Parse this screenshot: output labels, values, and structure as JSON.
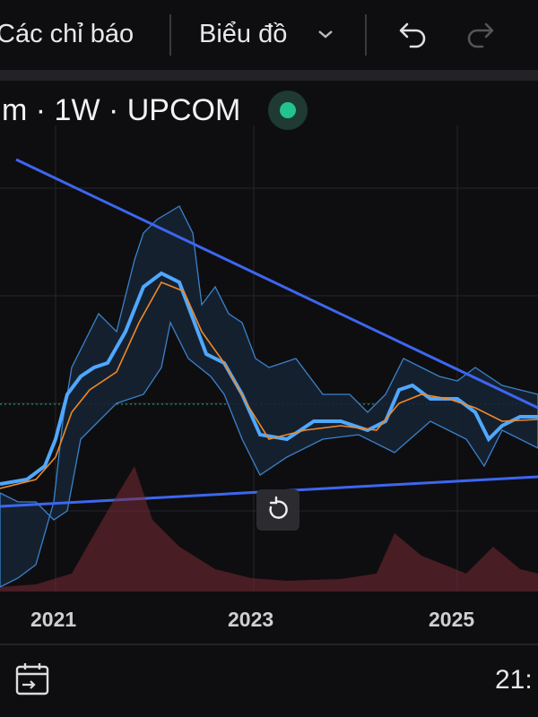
{
  "toolbar": {
    "indicators": "Các chỉ báo",
    "chart_menu": "Biểu đồ"
  },
  "symbol_header": {
    "label": "m · 1W · UPCOM"
  },
  "x_axis": {
    "labels": [
      "2021",
      "2023",
      "2025"
    ]
  },
  "bottom_bar": {
    "time": "21:"
  }
}
